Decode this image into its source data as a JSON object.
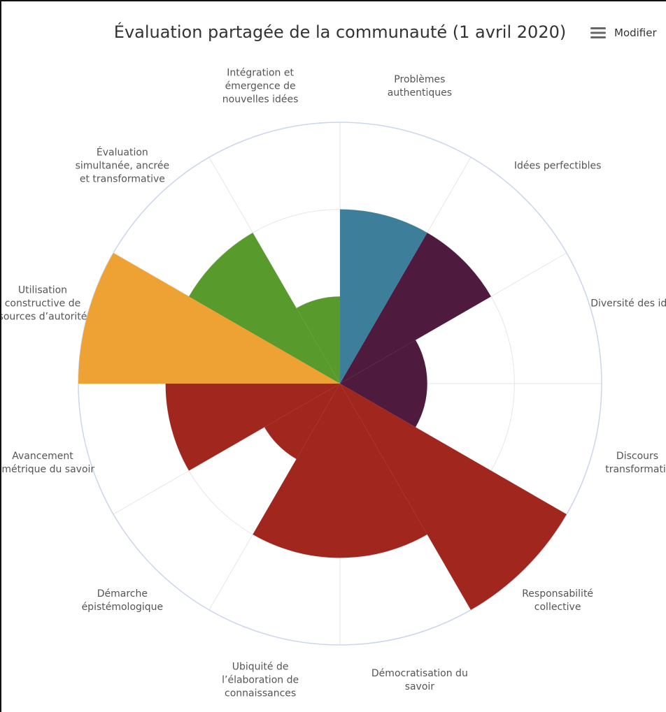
{
  "chart_data": {
    "type": "polar-area",
    "title": "Évaluation partagée de la communauté (1 avril 2020)",
    "menu_label": "Modifier",
    "categories": [
      "Problèmes authentiques",
      "Idées perfectibles",
      "Diversité des idées",
      "Discours transformatif",
      "Responsabilité collective",
      "Démocratisation du savoir",
      "Ubiquité de l’élaboration de connaissances",
      "Démarche épistémologique",
      "Avancement symétrique du savoir",
      "Utilisation constructive de sources d’autorité",
      "Évaluation simultanée, ancrée et transformative",
      "Intégration et émergence de nouvelles idées"
    ],
    "values": [
      2,
      2,
      1,
      1,
      3,
      2,
      2,
      1,
      2,
      3,
      2,
      1
    ],
    "colors": [
      "#3d7f9b",
      "#4e1a3d",
      "#4e1a3d",
      "#4e1a3d",
      "#a0261e",
      "#a0261e",
      "#a0261e",
      "#a0261e",
      "#a0261e",
      "#eea233",
      "#589b2c",
      "#589b2c"
    ],
    "ylim": [
      0,
      3
    ],
    "yticks": [
      1,
      2,
      3
    ],
    "grid": true
  }
}
